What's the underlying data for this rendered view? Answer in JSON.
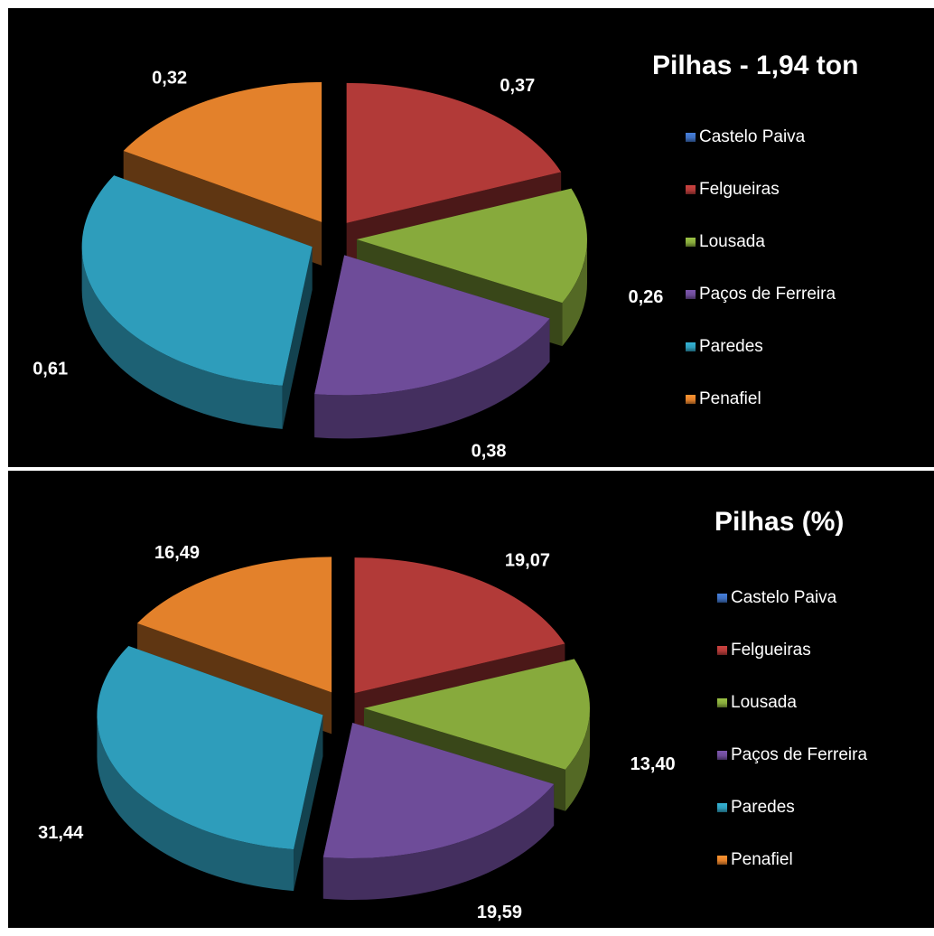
{
  "chart_data": [
    {
      "type": "pie",
      "title": "Pilhas - 1,94 ton",
      "categories": [
        "Castelo Paiva",
        "Felgueiras",
        "Lousada",
        "Paços de Ferreira",
        "Paredes",
        "Penafiel"
      ],
      "values": [
        0,
        0.37,
        0.26,
        0.38,
        0.61,
        0.32
      ],
      "data_labels": [
        "",
        "0,37",
        "0,26",
        "0,38",
        "0,61",
        "0,32"
      ],
      "legend_position": "right",
      "style": "3d-exploded"
    },
    {
      "type": "pie",
      "title": "Pilhas (%)",
      "categories": [
        "Castelo Paiva",
        "Felgueiras",
        "Lousada",
        "Paços de Ferreira",
        "Paredes",
        "Penafiel"
      ],
      "values": [
        0,
        19.07,
        13.4,
        19.59,
        31.44,
        16.49
      ],
      "data_labels": [
        "",
        "19,07",
        "13,40",
        "19,59",
        "31,44",
        "16,49"
      ],
      "legend_position": "right",
      "style": "3d-exploded"
    }
  ],
  "colors": {
    "Castelo Paiva": "#3E6FC0",
    "Felgueiras": "#B23A38",
    "Lousada": "#87AA3C",
    "Paços de Ferreira": "#6E4C99",
    "Paredes": "#2E9DBB",
    "Penafiel": "#E3812B",
    "background": "#000000",
    "text": "#ffffff"
  }
}
